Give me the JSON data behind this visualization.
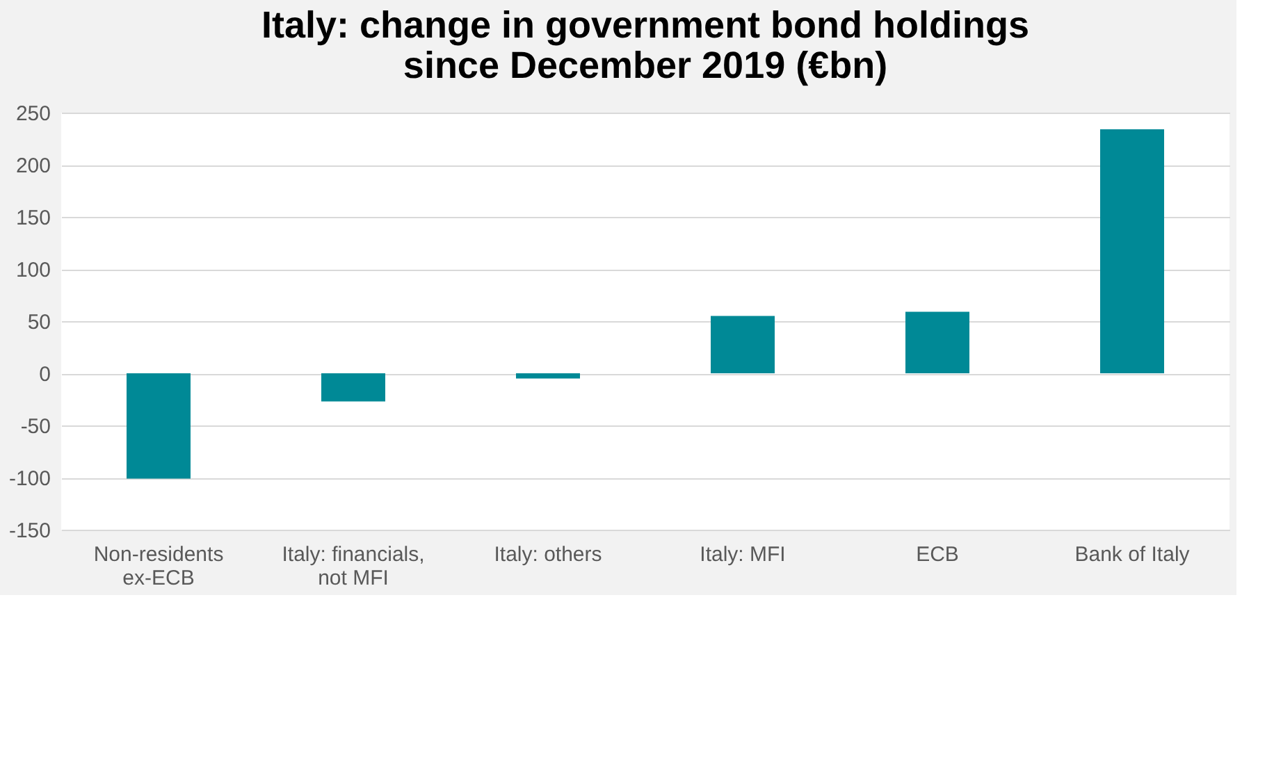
{
  "chart_data": {
    "type": "bar",
    "title": "Italy: change in government bond holdings since December 2019 (€bn)",
    "categories": [
      "Non-residents ex-ECB",
      "Italy: financials, not MFI",
      "Italy: others",
      "Italy: MFI",
      "ECB",
      "Bank of Italy"
    ],
    "values": [
      -101,
      -27,
      -5,
      55,
      59,
      234
    ],
    "color": "#008996",
    "ylim": [
      -150,
      250
    ],
    "yticks": [
      -150,
      -100,
      -50,
      0,
      50,
      100,
      150,
      200,
      250
    ],
    "grid": "y"
  }
}
